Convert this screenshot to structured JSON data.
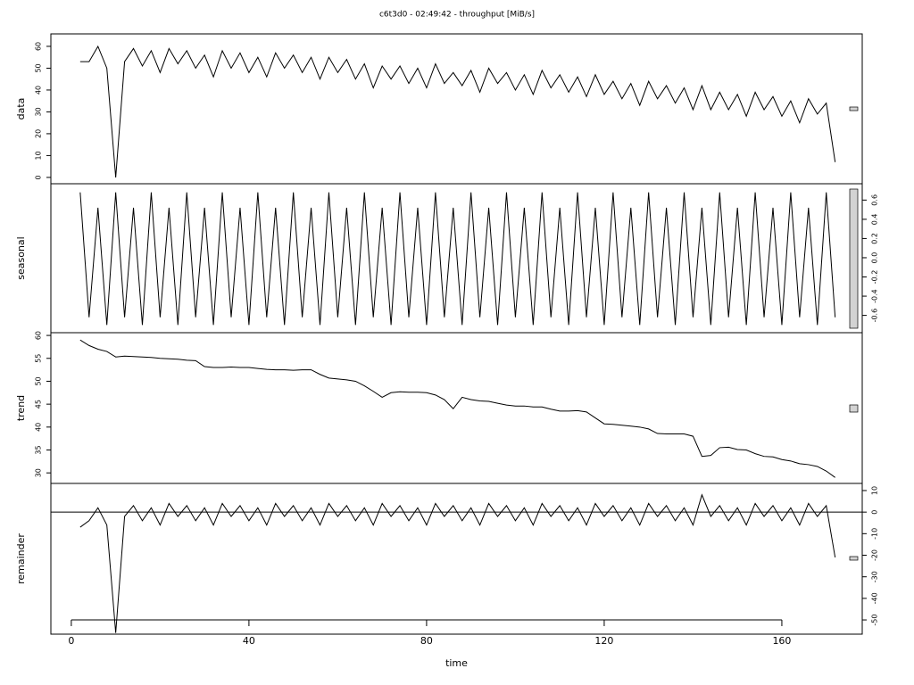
{
  "chart_data": [
    {
      "type": "line",
      "title": "c6t3d0 - 02:49:42 - throughput [MiB/s]",
      "y_label": "data",
      "xlim": [
        -4.6,
        178.1
      ],
      "ylim": [
        -2.9,
        65.7
      ],
      "yticks": [
        0,
        10,
        20,
        30,
        40,
        50,
        60
      ],
      "axis_side": "left",
      "x": [
        2,
        4,
        6,
        8,
        10,
        12,
        14,
        16,
        18,
        20,
        22,
        24,
        26,
        28,
        30,
        32,
        34,
        36,
        38,
        40,
        42,
        44,
        46,
        48,
        50,
        52,
        54,
        56,
        58,
        60,
        62,
        64,
        66,
        68,
        70,
        72,
        74,
        76,
        78,
        80,
        82,
        84,
        86,
        88,
        90,
        92,
        94,
        96,
        98,
        100,
        102,
        104,
        106,
        108,
        110,
        112,
        114,
        116,
        118,
        120,
        122,
        124,
        126,
        128,
        130,
        132,
        134,
        136,
        138,
        140,
        142,
        144,
        146,
        148,
        150,
        152,
        154,
        156,
        158,
        160,
        162,
        164,
        166,
        168,
        170,
        172
      ],
      "values": [
        53,
        53,
        60,
        50,
        0,
        53,
        59,
        51,
        58,
        48,
        59,
        52,
        58,
        50,
        56,
        46,
        58,
        50,
        57,
        48,
        55,
        46,
        57,
        50,
        56,
        48,
        55,
        45,
        55,
        48,
        54,
        45,
        52,
        41,
        51,
        45,
        51,
        43,
        50,
        41,
        52,
        43,
        48,
        42,
        49,
        39,
        50,
        43,
        48,
        40,
        47,
        38,
        49,
        41,
        47,
        39,
        46,
        37,
        47,
        38,
        44,
        36,
        43,
        33,
        44,
        36,
        42,
        34,
        41,
        31,
        42,
        31,
        39,
        31,
        38,
        28,
        39,
        31,
        37,
        28,
        35,
        25,
        36,
        29,
        34,
        7
      ]
    },
    {
      "type": "line",
      "y_label": "seasonal",
      "xlim": [
        -4.6,
        178.1
      ],
      "ylim": [
        -0.78,
        0.77
      ],
      "yticks": [
        -0.6,
        -0.4,
        -0.2,
        {
          "value": 0,
          "label": "0.0"
        },
        0.2,
        0.4,
        0.6
      ],
      "axis_side": "right",
      "x": [
        2,
        4,
        6,
        8,
        10,
        12,
        14,
        16,
        18,
        20,
        22,
        24,
        26,
        28,
        30,
        32,
        34,
        36,
        38,
        40,
        42,
        44,
        46,
        48,
        50,
        52,
        54,
        56,
        58,
        60,
        62,
        64,
        66,
        68,
        70,
        72,
        74,
        76,
        78,
        80,
        82,
        84,
        86,
        88,
        90,
        92,
        94,
        96,
        98,
        100,
        102,
        104,
        106,
        108,
        110,
        112,
        114,
        116,
        118,
        120,
        122,
        124,
        126,
        128,
        130,
        132,
        134,
        136,
        138,
        140,
        142,
        144,
        146,
        148,
        150,
        152,
        154,
        156,
        158,
        160,
        162,
        164,
        166,
        168,
        170,
        172
      ],
      "values": [
        0.68,
        -0.62,
        0.52,
        -0.7,
        0.68,
        -0.62,
        0.52,
        -0.7,
        0.68,
        -0.62,
        0.52,
        -0.7,
        0.68,
        -0.62,
        0.52,
        -0.7,
        0.68,
        -0.62,
        0.52,
        -0.7,
        0.68,
        -0.62,
        0.52,
        -0.7,
        0.68,
        -0.62,
        0.52,
        -0.7,
        0.68,
        -0.62,
        0.52,
        -0.7,
        0.68,
        -0.62,
        0.52,
        -0.7,
        0.68,
        -0.62,
        0.52,
        -0.7,
        0.68,
        -0.62,
        0.52,
        -0.7,
        0.68,
        -0.62,
        0.52,
        -0.7,
        0.68,
        -0.62,
        0.52,
        -0.7,
        0.68,
        -0.62,
        0.52,
        -0.7,
        0.68,
        -0.62,
        0.52,
        -0.7,
        0.68,
        -0.62,
        0.52,
        -0.7,
        0.68,
        -0.62,
        0.52,
        -0.7,
        0.68,
        -0.62,
        0.52,
        -0.7,
        0.68,
        -0.62,
        0.52,
        -0.7,
        0.68,
        -0.62,
        0.52,
        -0.7,
        0.68,
        -0.62,
        0.52,
        -0.7,
        0.68,
        -0.62
      ]
    },
    {
      "type": "line",
      "y_label": "trend",
      "xlim": [
        -4.6,
        178.1
      ],
      "ylim": [
        27.7,
        60.6
      ],
      "yticks": [
        30,
        35,
        40,
        45,
        50,
        55,
        60
      ],
      "axis_side": "left",
      "x": [
        2,
        4,
        6,
        8,
        10,
        12,
        14,
        16,
        18,
        20,
        22,
        24,
        26,
        28,
        30,
        32,
        34,
        36,
        38,
        40,
        42,
        44,
        46,
        48,
        50,
        52,
        54,
        56,
        58,
        60,
        62,
        64,
        66,
        68,
        70,
        72,
        74,
        76,
        78,
        80,
        82,
        84,
        86,
        88,
        90,
        92,
        94,
        96,
        98,
        100,
        102,
        104,
        106,
        108,
        110,
        112,
        114,
        116,
        118,
        120,
        122,
        124,
        126,
        128,
        130,
        132,
        134,
        136,
        138,
        140,
        142,
        144,
        146,
        148,
        150,
        152,
        154,
        156,
        158,
        160,
        162,
        164,
        166,
        168,
        170,
        172
      ],
      "values": [
        59,
        57.8,
        57,
        56.5,
        55.3,
        55.5,
        55.4,
        55.3,
        55.2,
        55,
        54.9,
        54.8,
        54.6,
        54.5,
        53.2,
        53,
        53,
        53.1,
        53,
        53,
        52.8,
        52.6,
        52.5,
        52.5,
        52.4,
        52.5,
        52.5,
        51.5,
        50.7,
        50.5,
        50.3,
        50,
        49,
        47.8,
        46.5,
        47.5,
        47.7,
        47.6,
        47.6,
        47.5,
        47,
        46,
        44,
        46.5,
        46,
        45.7,
        45.6,
        45.2,
        44.8,
        44.6,
        44.6,
        44.4,
        44.4,
        43.9,
        43.5,
        43.5,
        43.6,
        43.3,
        42,
        40.7,
        40.6,
        40.4,
        40.2,
        40,
        39.6,
        38.6,
        38.5,
        38.5,
        38.5,
        38,
        33.6,
        33.8,
        35.5,
        35.6,
        35.1,
        35,
        34.2,
        33.6,
        33.5,
        32.9,
        32.6,
        32,
        31.8,
        31.4,
        30.4,
        29
      ]
    },
    {
      "type": "line",
      "y_label": "remainder",
      "x_label": "time",
      "xlim": [
        -4.6,
        178.1
      ],
      "ylim": [
        -56.6,
        13.3
      ],
      "yticks": [
        -50,
        -40,
        -30,
        -20,
        -10,
        0,
        10
      ],
      "axis_side": "right",
      "xticks": [
        0,
        40,
        80,
        120,
        160
      ],
      "reference_line": 0,
      "x": [
        2,
        4,
        6,
        8,
        10,
        12,
        14,
        16,
        18,
        20,
        22,
        24,
        26,
        28,
        30,
        32,
        34,
        36,
        38,
        40,
        42,
        44,
        46,
        48,
        50,
        52,
        54,
        56,
        58,
        60,
        62,
        64,
        66,
        68,
        70,
        72,
        74,
        76,
        78,
        80,
        82,
        84,
        86,
        88,
        90,
        92,
        94,
        96,
        98,
        100,
        102,
        104,
        106,
        108,
        110,
        112,
        114,
        116,
        118,
        120,
        122,
        124,
        126,
        128,
        130,
        132,
        134,
        136,
        138,
        140,
        142,
        144,
        146,
        148,
        150,
        152,
        154,
        156,
        158,
        160,
        162,
        164,
        166,
        168,
        170,
        172
      ],
      "values": [
        -7,
        -4,
        2,
        -6,
        -56,
        -2,
        3,
        -4,
        2,
        -6,
        4,
        -2,
        3,
        -4,
        2,
        -6,
        4,
        -2,
        3,
        -4,
        2,
        -6,
        4,
        -2,
        3,
        -4,
        2,
        -6,
        4,
        -2,
        3,
        -4,
        2,
        -6,
        4,
        -2,
        3,
        -4,
        2,
        -6,
        4,
        -2,
        3,
        -4,
        2,
        -6,
        4,
        -2,
        3,
        -4,
        2,
        -6,
        4,
        -2,
        3,
        -4,
        2,
        -6,
        4,
        -2,
        3,
        -4,
        2,
        -6,
        4,
        -2,
        3,
        -4,
        2,
        -6,
        8,
        -2,
        3,
        -4,
        2,
        -6,
        4,
        -2,
        3,
        -4,
        2,
        -6,
        4,
        -2,
        3,
        -21
      ]
    }
  ]
}
